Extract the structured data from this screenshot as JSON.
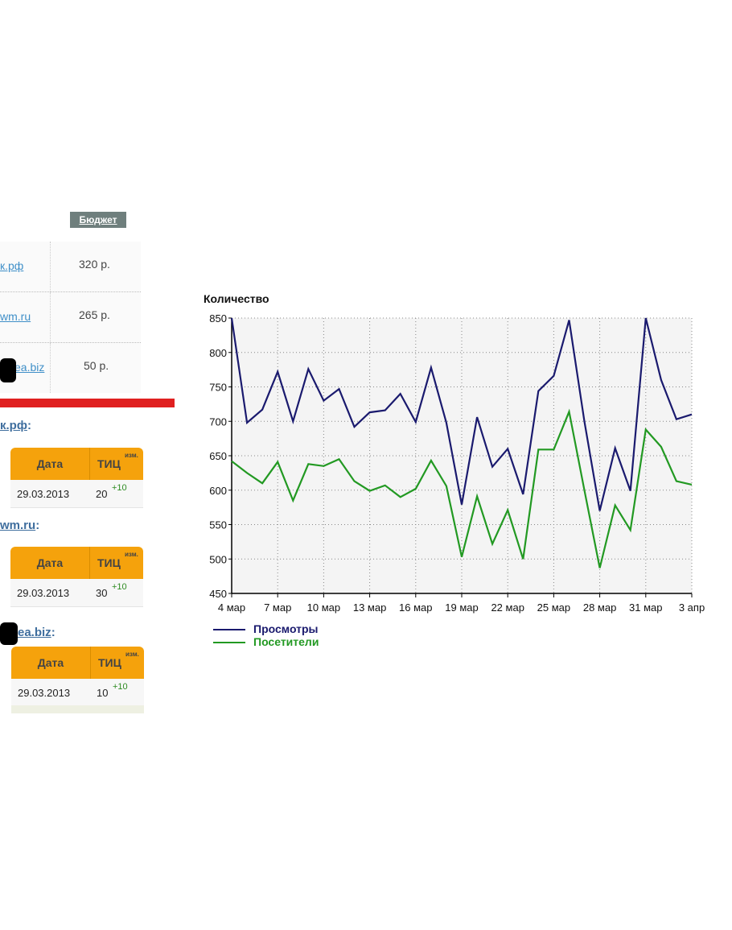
{
  "budget": {
    "header": "Бюджет",
    "rows": [
      {
        "site": "к.рф",
        "amount": "320 р."
      },
      {
        "site": "wm.ru",
        "amount": "265 р."
      },
      {
        "site": "ea.biz",
        "amount": "50 р."
      }
    ]
  },
  "tic_sections": [
    {
      "title": "к.рф",
      "colon": ":",
      "head_date": "Дата",
      "head_tic": "ТИЦ",
      "head_izm": "изм.",
      "date": "29.03.2013",
      "value": "20",
      "diff": "+10"
    },
    {
      "title": "wm.ru",
      "colon": ":",
      "head_date": "Дата",
      "head_tic": "ТИЦ",
      "head_izm": "изм.",
      "date": "29.03.2013",
      "value": "30",
      "diff": "+10"
    },
    {
      "title": "ea.biz",
      "colon": ":",
      "head_date": "Дата",
      "head_tic": "ТИЦ",
      "head_izm": "изм.",
      "date": "29.03.2013",
      "value": "10",
      "diff": "+10"
    }
  ],
  "colors": {
    "budget_header": "#6f7f7d",
    "link": "#3f8fc8",
    "red_bar": "#e02020",
    "table_head": "#f5a20c",
    "diff": "#2e8b22",
    "views": "#1a1a6e",
    "visitors": "#229922"
  },
  "chart_data": {
    "type": "line",
    "ylabel": "Количество",
    "ylim": [
      450,
      850
    ],
    "yticks": [
      450,
      500,
      550,
      600,
      650,
      700,
      750,
      800,
      850
    ],
    "x": [
      "4 мар",
      "5 мар",
      "6 мар",
      "7 мар",
      "8 мар",
      "9 мар",
      "10 мар",
      "11 мар",
      "12 мар",
      "13 мар",
      "14 мар",
      "15 мар",
      "16 мар",
      "17 мар",
      "18 мар",
      "19 мар",
      "20 мар",
      "21 мар",
      "22 мар",
      "23 мар",
      "24 мар",
      "25 мар",
      "26 мар",
      "27 мар",
      "28 мар",
      "29 мар",
      "30 мар",
      "31 мар",
      "1 апр",
      "2 апр",
      "3 апр"
    ],
    "xtick_labels": [
      "4 мар",
      "7 мар",
      "10 мар",
      "13 мар",
      "16 мар",
      "19 мар",
      "22 мар",
      "25 мар",
      "28 мар",
      "31 мар",
      "3 апр"
    ],
    "xtick_indices": [
      0,
      3,
      6,
      9,
      12,
      15,
      18,
      21,
      24,
      27,
      30
    ],
    "grid": true,
    "legend_position": "bottom-left",
    "series": [
      {
        "name": "Просмотры",
        "color": "#1a1a6e",
        "values": [
          850,
          698,
          717,
          772,
          700,
          776,
          730,
          747,
          692,
          713,
          716,
          740,
          699,
          778,
          698,
          579,
          706,
          634,
          660,
          594,
          744,
          766,
          847,
          700,
          570,
          661,
          599,
          850,
          760,
          703,
          710
        ]
      },
      {
        "name": "Посетители",
        "color": "#229922",
        "values": [
          642,
          625,
          610,
          641,
          585,
          638,
          635,
          645,
          613,
          599,
          607,
          590,
          602,
          643,
          606,
          503,
          591,
          522,
          571,
          500,
          659,
          659,
          714,
          600,
          487,
          578,
          542,
          688,
          663,
          613,
          608
        ]
      }
    ]
  }
}
